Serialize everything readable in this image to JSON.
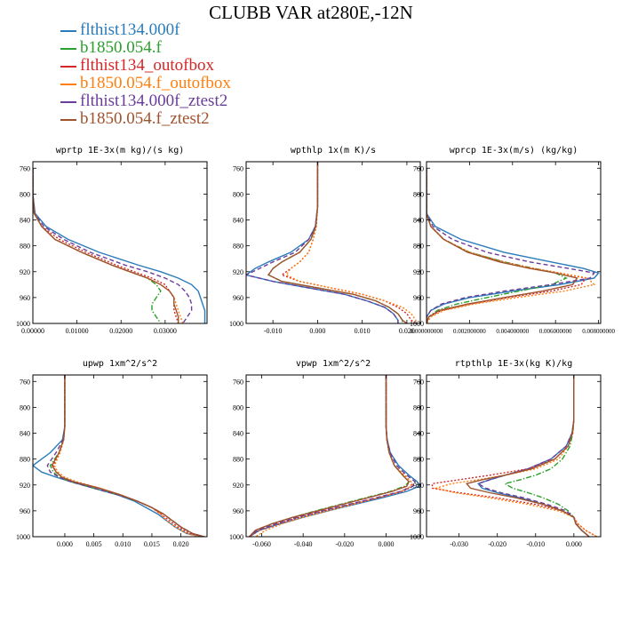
{
  "title": "CLUBB VAR at280E,-12N",
  "legend": [
    {
      "label": "flthist134.000f",
      "color": "#2b7bba",
      "dash": "solid"
    },
    {
      "label": "b1850.054.f",
      "color": "#2ca02c",
      "dash": "dashdot"
    },
    {
      "label": "flthist134_outofbox",
      "color": "#d62728",
      "dash": "dot"
    },
    {
      "label": "b1850.054.f_outofbox",
      "color": "#ff7f0e",
      "dash": "dot"
    },
    {
      "label": "flthist134.000f_ztest2",
      "color": "#6a3d9a",
      "dash": "dash"
    },
    {
      "label": "b1850.054.f_ztest2",
      "color": "#a0522d",
      "dash": "solid"
    }
  ],
  "chart_data": [
    {
      "type": "line",
      "title": "wprtp  1E-3x(m kg)/(s kg)",
      "xlim": [
        0,
        0.0395
      ],
      "ylim": [
        1000,
        750
      ],
      "xticks": [
        0,
        0.01,
        0.02,
        0.03
      ],
      "xticklabels": [
        "0.00000",
        "0.01000",
        "0.02000",
        "0.03000"
      ],
      "yticks": [
        760,
        800,
        840,
        880,
        920,
        960,
        1000
      ],
      "pressure": [
        760,
        800,
        830,
        850,
        870,
        890,
        910,
        920,
        930,
        940,
        950,
        960,
        970,
        980,
        990,
        1000
      ],
      "series": [
        {
          "name": "flthist134.000f",
          "values": [
            0,
            0,
            0.0005,
            0.003,
            0.008,
            0.015,
            0.024,
            0.029,
            0.033,
            0.036,
            0.0375,
            0.038,
            0.0385,
            0.039,
            0.039,
            0.039
          ]
        },
        {
          "name": "b1850.054.f",
          "values": [
            0,
            0,
            0.0003,
            0.002,
            0.005,
            0.011,
            0.018,
            0.022,
            0.026,
            0.028,
            0.029,
            0.028,
            0.027,
            0.027,
            0.028,
            0.029
          ]
        },
        {
          "name": "flthist134_outofbox",
          "values": [
            0,
            0,
            0.0003,
            0.002,
            0.006,
            0.012,
            0.019,
            0.023,
            0.027,
            0.03,
            0.031,
            0.032,
            0.032,
            0.032,
            0.0325,
            0.033
          ]
        },
        {
          "name": "b1850.054.f_outofbox",
          "values": [
            0,
            0,
            0.0003,
            0.002,
            0.005,
            0.011,
            0.018,
            0.022,
            0.026,
            0.029,
            0.031,
            0.032,
            0.0325,
            0.033,
            0.0335,
            0.034
          ]
        },
        {
          "name": "flthist134.000f_ztest2",
          "values": [
            0,
            0,
            0.0004,
            0.0025,
            0.007,
            0.013,
            0.021,
            0.026,
            0.03,
            0.033,
            0.0345,
            0.0355,
            0.036,
            0.036,
            0.035,
            0.034
          ]
        },
        {
          "name": "b1850.054.f_ztest2",
          "values": [
            0,
            0,
            0.0003,
            0.002,
            0.005,
            0.011,
            0.018,
            0.022,
            0.026,
            0.029,
            0.031,
            0.032,
            0.032,
            0.0325,
            0.033,
            0.033
          ]
        }
      ]
    },
    {
      "type": "line",
      "title": "wpthlp  1x(m K)/s",
      "xlim": [
        -0.016,
        0.023
      ],
      "ylim": [
        1000,
        750
      ],
      "xticks": [
        -0.01,
        0,
        0.01,
        0.02
      ],
      "xticklabels": [
        "-0.010",
        "0.000",
        "0.010",
        "0.020"
      ],
      "yticks": [
        760,
        800,
        840,
        880,
        920,
        960,
        1000
      ],
      "pressure": [
        750,
        820,
        850,
        870,
        890,
        905,
        915,
        925,
        935,
        945,
        955,
        965,
        975,
        985,
        995,
        1000
      ],
      "series": [
        {
          "name": "flthist134.000f",
          "values": [
            0,
            0,
            -0.0005,
            -0.002,
            -0.006,
            -0.011,
            -0.014,
            -0.016,
            -0.01,
            -0.002,
            0.006,
            0.011,
            0.015,
            0.017,
            0.018,
            0.018
          ]
        },
        {
          "name": "b1850.054.f",
          "values": [
            0,
            0,
            -0.0004,
            -0.0015,
            -0.004,
            -0.008,
            -0.01,
            -0.011,
            -0.008,
            0,
            0.008,
            0.013,
            0.016,
            0.018,
            0.019,
            0.019
          ]
        },
        {
          "name": "flthist134_outofbox",
          "values": [
            0,
            0,
            -0.0003,
            -0.001,
            -0.002,
            -0.004,
            -0.006,
            -0.008,
            -0.004,
            0.003,
            0.01,
            0.015,
            0.018,
            0.02,
            0.021,
            0.022
          ]
        },
        {
          "name": "b1850.054.f_outofbox",
          "values": [
            0,
            0,
            -0.0003,
            -0.001,
            -0.002,
            -0.004,
            -0.006,
            -0.007,
            -0.004,
            0.003,
            0.01,
            0.015,
            0.019,
            0.021,
            0.022,
            0.022
          ]
        },
        {
          "name": "flthist134.000f_ztest2",
          "values": [
            0,
            0,
            -0.0005,
            -0.002,
            -0.005,
            -0.01,
            -0.013,
            -0.016,
            -0.01,
            -0.002,
            0.006,
            0.011,
            0.015,
            0.017,
            0.018,
            0.018
          ]
        },
        {
          "name": "b1850.054.f_ztest2",
          "values": [
            0,
            0,
            -0.0004,
            -0.0015,
            -0.004,
            -0.008,
            -0.01,
            -0.011,
            -0.008,
            0,
            0.008,
            0.013,
            0.016,
            0.018,
            0.019,
            0.02
          ]
        }
      ]
    },
    {
      "type": "line",
      "title": "wprcp  1E-3x(m/s) (kg/kg)",
      "xlim": [
        0,
        0.0081
      ],
      "ylim": [
        1000,
        750
      ],
      "xticks": [
        0,
        0.002,
        0.004,
        0.006,
        0.008
      ],
      "xticklabels": [
        "0.000000000",
        "0.002000000",
        "0.004000000",
        "0.006000000",
        "0.008000000"
      ],
      "yticks": [
        760,
        800,
        840,
        880,
        920,
        960,
        1000
      ],
      "pressure": [
        760,
        830,
        850,
        870,
        890,
        905,
        915,
        922,
        930,
        940,
        950,
        960,
        970,
        980,
        990,
        1000
      ],
      "series": [
        {
          "name": "flthist134.000f",
          "values": [
            0,
            0,
            0.0004,
            0.0016,
            0.0036,
            0.0058,
            0.0073,
            0.008,
            0.0078,
            0.0062,
            0.004,
            0.002,
            0.0008,
            0.0002,
            0,
            0
          ]
        },
        {
          "name": "b1850.054.f",
          "values": [
            0,
            0,
            0.0002,
            0.0008,
            0.002,
            0.0036,
            0.005,
            0.006,
            0.0065,
            0.0058,
            0.0043,
            0.0028,
            0.0014,
            0.0005,
            0.0001,
            0
          ]
        },
        {
          "name": "flthist134_outofbox",
          "values": [
            0,
            0,
            0.0002,
            0.0008,
            0.002,
            0.0036,
            0.005,
            0.0062,
            0.0074,
            0.0072,
            0.0058,
            0.0038,
            0.002,
            0.0007,
            0.0001,
            0
          ]
        },
        {
          "name": "b1850.054.f_outofbox",
          "values": [
            0,
            0,
            0.0002,
            0.0008,
            0.002,
            0.0035,
            0.005,
            0.0062,
            0.0075,
            0.0078,
            0.0064,
            0.0042,
            0.0022,
            0.0008,
            0.0002,
            0
          ]
        },
        {
          "name": "flthist134.000f_ztest2",
          "values": [
            0,
            0,
            0.0003,
            0.0012,
            0.0028,
            0.0048,
            0.0066,
            0.0078,
            0.0076,
            0.0058,
            0.0036,
            0.0018,
            0.0007,
            0.0002,
            0,
            0
          ]
        },
        {
          "name": "b1850.054.f_ztest2",
          "values": [
            0,
            0,
            0.0002,
            0.0008,
            0.0019,
            0.0034,
            0.0048,
            0.006,
            0.007,
            0.0068,
            0.0054,
            0.0036,
            0.0019,
            0.0006,
            0.0001,
            0
          ]
        }
      ]
    },
    {
      "type": "line",
      "title": "upwp  1xm^2/s^2",
      "xlim": [
        -0.0055,
        0.0245
      ],
      "ylim": [
        1000,
        750
      ],
      "xticks": [
        0,
        0.005,
        0.01,
        0.015,
        0.02
      ],
      "xticklabels": [
        "0.000",
        "0.005",
        "0.010",
        "0.015",
        "0.020"
      ],
      "yticks": [
        760,
        800,
        840,
        880,
        920,
        960,
        1000
      ],
      "pressure": [
        750,
        830,
        850,
        870,
        890,
        900,
        908,
        915,
        925,
        935,
        945,
        955,
        965,
        975,
        985,
        995,
        1000
      ],
      "series": [
        {
          "name": "flthist134.000f",
          "values": [
            0,
            0,
            -0.0004,
            -0.0025,
            -0.0055,
            -0.004,
            -0.0015,
            0.001,
            0.005,
            0.009,
            0.012,
            0.014,
            0.016,
            0.0175,
            0.019,
            0.021,
            0.024
          ]
        },
        {
          "name": "b1850.054.f",
          "values": [
            0,
            0,
            -0.0002,
            -0.001,
            -0.0025,
            -0.002,
            -0.001,
            0.001,
            0.005,
            0.009,
            0.0125,
            0.015,
            0.017,
            0.0185,
            0.02,
            0.022,
            0.024
          ]
        },
        {
          "name": "flthist134_outofbox",
          "values": [
            0,
            0,
            -0.0002,
            -0.0008,
            -0.002,
            -0.0015,
            -0.0005,
            0.0015,
            0.006,
            0.0095,
            0.0125,
            0.015,
            0.0165,
            0.018,
            0.0195,
            0.0215,
            0.024
          ]
        },
        {
          "name": "b1850.054.f_outofbox",
          "values": [
            0,
            0,
            -0.0002,
            -0.0008,
            -0.0018,
            -0.0012,
            0,
            0.002,
            0.006,
            0.0095,
            0.0125,
            0.015,
            0.0165,
            0.0175,
            0.019,
            0.021,
            0.023
          ]
        },
        {
          "name": "flthist134.000f_ztest2",
          "values": [
            0,
            0,
            -0.0003,
            -0.0015,
            -0.003,
            -0.0025,
            -0.001,
            0.001,
            0.005,
            0.009,
            0.0125,
            0.015,
            0.017,
            0.0185,
            0.02,
            0.022,
            0.024
          ]
        },
        {
          "name": "b1850.054.f_ztest2",
          "values": [
            0,
            0,
            -0.0002,
            -0.001,
            -0.0022,
            -0.0015,
            -0.0005,
            0.0015,
            0.006,
            0.0095,
            0.0125,
            0.015,
            0.017,
            0.0185,
            0.02,
            0.022,
            0.024
          ]
        }
      ]
    },
    {
      "type": "line",
      "title": "vpwp  1xm^2/s^2",
      "xlim": [
        -0.0675,
        0.0165
      ],
      "ylim": [
        1000,
        750
      ],
      "xticks": [
        -0.06,
        -0.04,
        -0.02,
        0
      ],
      "xticklabels": [
        "-0.060",
        "-0.040",
        "-0.020",
        "0.000"
      ],
      "yticks": [
        760,
        800,
        840,
        880,
        920,
        960,
        1000
      ],
      "pressure": [
        750,
        830,
        850,
        870,
        890,
        905,
        915,
        922,
        930,
        940,
        950,
        960,
        970,
        980,
        990,
        1000
      ],
      "series": [
        {
          "name": "flthist134.000f",
          "values": [
            0,
            0,
            0.0005,
            0.002,
            0.006,
            0.011,
            0.015,
            0.016,
            0.01,
            -0.002,
            -0.015,
            -0.028,
            -0.04,
            -0.051,
            -0.061,
            -0.066
          ]
        },
        {
          "name": "b1850.054.f",
          "values": [
            0,
            0,
            0.0004,
            0.0015,
            0.004,
            0.008,
            0.011,
            0.009,
            0.002,
            -0.01,
            -0.022,
            -0.034,
            -0.045,
            -0.055,
            -0.063,
            -0.066
          ]
        },
        {
          "name": "flthist134_outofbox",
          "values": [
            0,
            0,
            0.0004,
            0.0015,
            0.004,
            0.009,
            0.012,
            0.013,
            0.008,
            -0.004,
            -0.017,
            -0.03,
            -0.042,
            -0.052,
            -0.061,
            -0.066
          ]
        },
        {
          "name": "b1850.054.f_outofbox",
          "values": [
            0,
            0,
            0.0004,
            0.0015,
            0.004,
            0.009,
            0.012,
            0.012,
            0.007,
            -0.004,
            -0.016,
            -0.028,
            -0.04,
            -0.05,
            -0.058,
            -0.063
          ]
        },
        {
          "name": "flthist134.000f_ztest2",
          "values": [
            0,
            0,
            0.0005,
            0.002,
            0.005,
            0.01,
            0.014,
            0.013,
            0.007,
            -0.005,
            -0.018,
            -0.031,
            -0.043,
            -0.053,
            -0.062,
            -0.066
          ]
        },
        {
          "name": "b1850.054.f_ztest2",
          "values": [
            0,
            0,
            0.0004,
            0.0015,
            0.004,
            0.008,
            0.011,
            0.01,
            0.003,
            -0.009,
            -0.021,
            -0.033,
            -0.045,
            -0.055,
            -0.063,
            -0.066
          ]
        }
      ]
    },
    {
      "type": "line",
      "title": "rtpthlp  1E-3x(kg K)/kg",
      "xlim": [
        -0.0385,
        0.007
      ],
      "ylim": [
        1000,
        750
      ],
      "xticks": [
        -0.03,
        -0.02,
        -0.01,
        0
      ],
      "xticklabels": [
        "-0.030",
        "-0.020",
        "-0.010",
        "0.000"
      ],
      "yticks": [
        760,
        800,
        840,
        880,
        920,
        960,
        1000
      ],
      "pressure": [
        750,
        820,
        840,
        860,
        880,
        895,
        905,
        912,
        918,
        925,
        932,
        940,
        950,
        960,
        970,
        980,
        990,
        1000
      ],
      "series": [
        {
          "name": "flthist134.000f",
          "values": [
            0,
            0,
            -0.0005,
            -0.002,
            -0.006,
            -0.012,
            -0.018,
            -0.022,
            -0.025,
            -0.024,
            -0.02,
            -0.014,
            -0.008,
            -0.003,
            0,
            0.0005,
            0.002,
            0.004
          ]
        },
        {
          "name": "b1850.054.f",
          "values": [
            0,
            0,
            -0.0003,
            -0.001,
            -0.003,
            -0.006,
            -0.01,
            -0.014,
            -0.018,
            -0.016,
            -0.012,
            -0.008,
            -0.004,
            -0.0015,
            0,
            0.0005,
            0.002,
            0.004
          ]
        },
        {
          "name": "flthist134_outofbox",
          "values": [
            0,
            0,
            -0.0003,
            -0.0015,
            -0.005,
            -0.012,
            -0.022,
            -0.03,
            -0.037,
            -0.037,
            -0.03,
            -0.02,
            -0.01,
            -0.003,
            0,
            0.001,
            0.003,
            0.006
          ]
        },
        {
          "name": "b1850.054.f_outofbox",
          "values": [
            0,
            0,
            -0.0003,
            -0.0015,
            -0.004,
            -0.01,
            -0.018,
            -0.025,
            -0.032,
            -0.036,
            -0.031,
            -0.022,
            -0.012,
            -0.004,
            0,
            0.001,
            0.003,
            0.006
          ]
        },
        {
          "name": "flthist134.000f_ztest2",
          "values": [
            0,
            0,
            -0.0005,
            -0.002,
            -0.006,
            -0.012,
            -0.018,
            -0.022,
            -0.025,
            -0.023,
            -0.019,
            -0.013,
            -0.007,
            -0.002,
            0,
            0.0005,
            0.002,
            0.004
          ]
        },
        {
          "name": "b1850.054.f_ztest2",
          "values": [
            0,
            0,
            -0.0004,
            -0.0015,
            -0.005,
            -0.011,
            -0.018,
            -0.024,
            -0.028,
            -0.027,
            -0.022,
            -0.015,
            -0.008,
            -0.003,
            0,
            0.0005,
            0.002,
            0.004
          ]
        }
      ]
    }
  ]
}
